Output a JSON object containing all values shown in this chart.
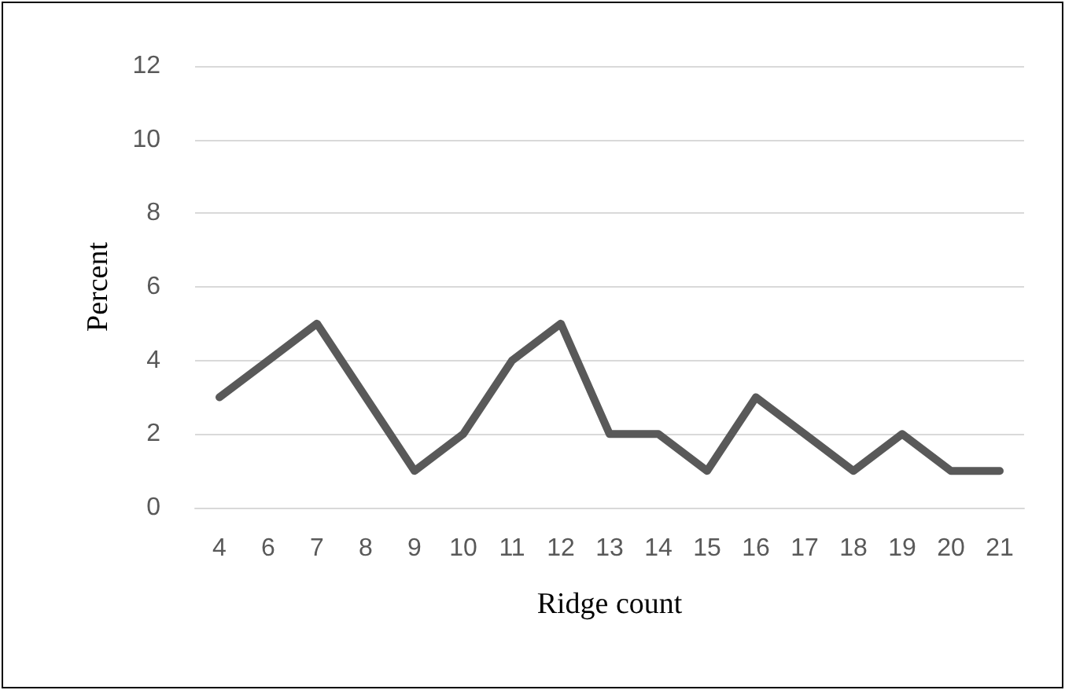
{
  "chart_data": {
    "type": "line",
    "xlabel": "Ridge count",
    "ylabel": "Percent",
    "categories": [
      "4",
      "6",
      "7",
      "8",
      "9",
      "10",
      "11",
      "12",
      "13",
      "14",
      "15",
      "16",
      "17",
      "18",
      "19",
      "20",
      "21"
    ],
    "series": [
      {
        "color": "#595959",
        "values": [
          3,
          4,
          5,
          3,
          1,
          2,
          4,
          5,
          2,
          2,
          1,
          3,
          2,
          1,
          2,
          1,
          1
        ]
      }
    ],
    "ylim": [
      0,
      12
    ],
    "yticks": [
      0,
      2,
      4,
      6,
      8,
      10,
      12
    ],
    "grid": "y",
    "marker": "none",
    "line_style": "solid"
  }
}
